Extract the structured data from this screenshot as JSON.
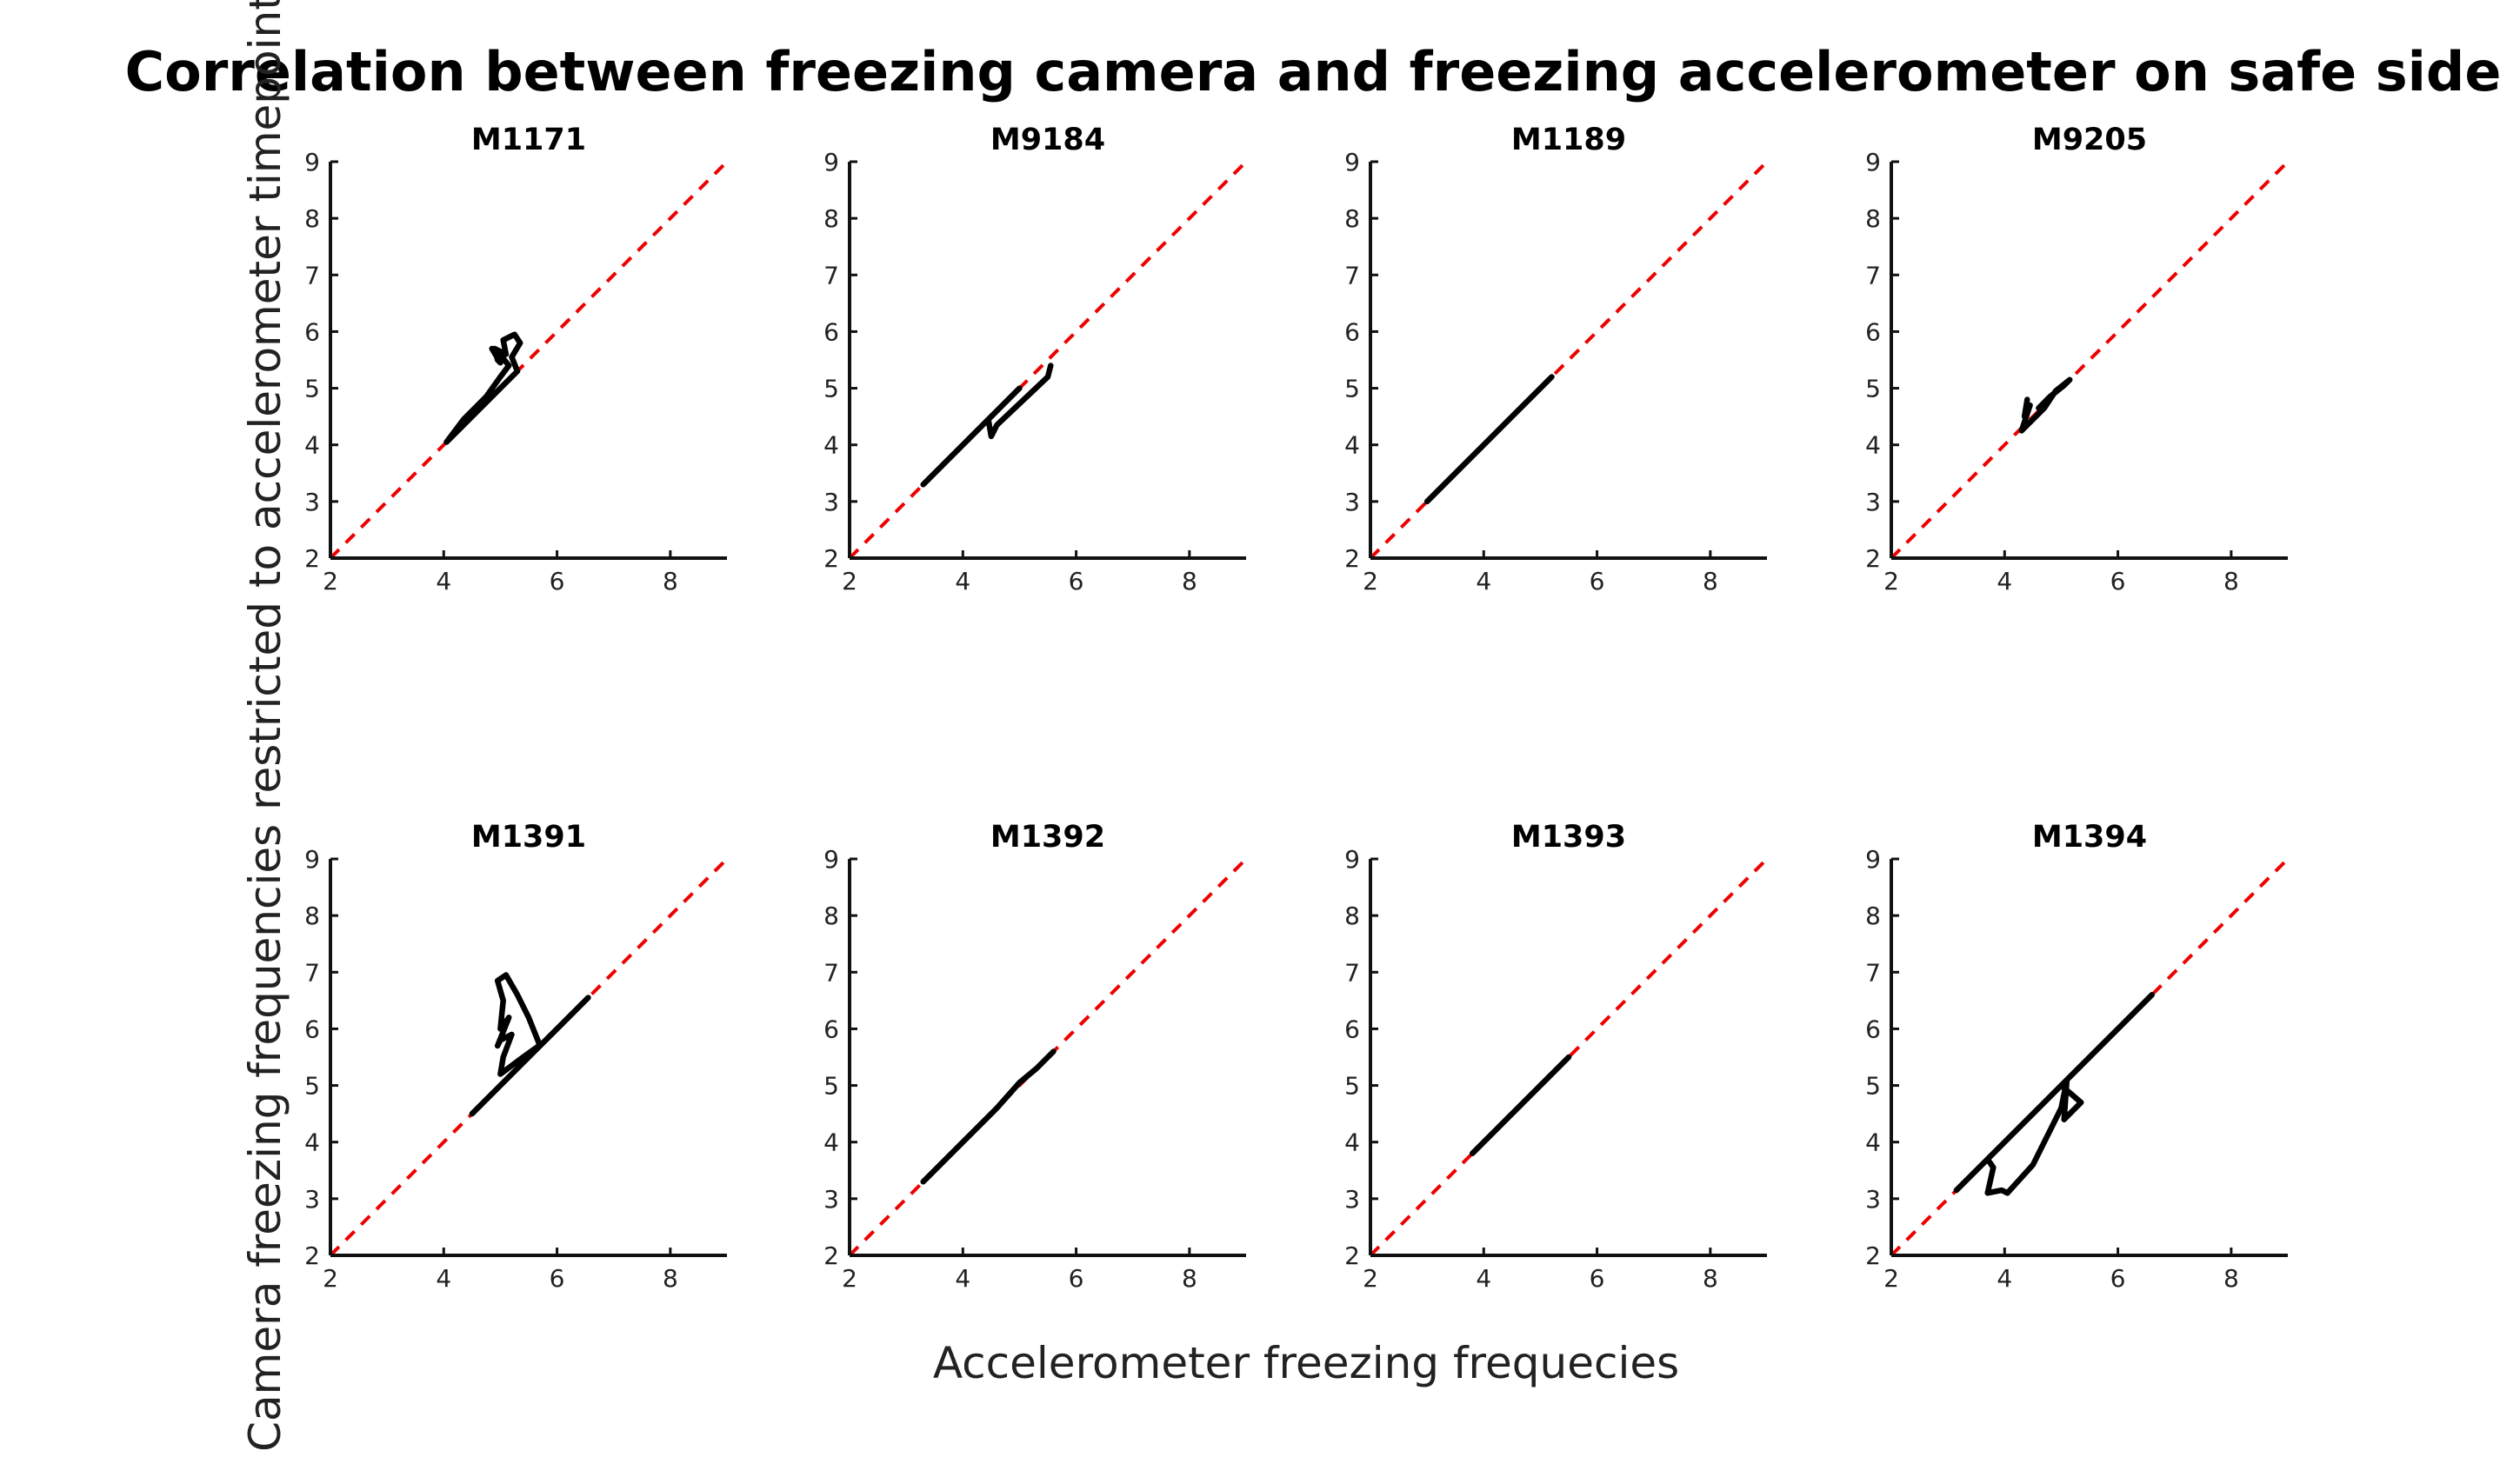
{
  "figure": {
    "title": "Correlation between freezing camera and freezing accelerometer on safe side",
    "xlabel": "Accelerometer freezing frequecies",
    "ylabel": "Camera freezing frequencies restricted to accelerometer timepoints"
  },
  "colors": {
    "reference_line": "#ee0000",
    "data_line": "#000000",
    "axes": "#111111"
  },
  "chart_data": [
    {
      "type": "line",
      "title": "M1171",
      "xlim": [
        2,
        9
      ],
      "ylim": [
        2,
        9
      ],
      "xticks": [
        2,
        4,
        6,
        8
      ],
      "yticks": [
        2,
        3,
        4,
        5,
        6,
        7,
        8,
        9
      ],
      "grid": false,
      "reference_line": {
        "style": "dashed",
        "color": "#ee0000",
        "x": [
          2,
          9
        ],
        "y": [
          2,
          9
        ]
      },
      "series": [
        {
          "x": [
            4.05,
            4.3,
            4.6,
            5.0,
            5.3,
            5.2,
            5.35,
            5.25,
            5.05,
            5.1,
            4.9,
            4.95,
            5.0,
            4.85,
            4.95,
            5.15,
            5.0,
            4.75,
            4.35,
            4.05
          ],
          "y": [
            4.05,
            4.3,
            4.6,
            5.0,
            5.3,
            5.55,
            5.8,
            5.95,
            5.85,
            5.6,
            5.7,
            5.5,
            5.45,
            5.7,
            5.65,
            5.4,
            5.2,
            4.85,
            4.45,
            4.05
          ]
        }
      ]
    },
    {
      "type": "line",
      "title": "M9184",
      "xlim": [
        2,
        9
      ],
      "ylim": [
        2,
        9
      ],
      "xticks": [
        2,
        4,
        6,
        8
      ],
      "yticks": [
        2,
        3,
        4,
        5,
        6,
        7,
        8,
        9
      ],
      "grid": false,
      "reference_line": {
        "style": "dashed",
        "color": "#ee0000",
        "x": [
          2,
          9
        ],
        "y": [
          2,
          9
        ]
      },
      "series": [
        {
          "x": [
            3.3,
            4.0,
            4.5,
            5.0,
            4.45,
            4.5,
            4.6,
            5.5,
            5.55
          ],
          "y": [
            3.3,
            4.0,
            4.5,
            5.0,
            4.45,
            4.15,
            4.35,
            5.2,
            5.4
          ]
        }
      ]
    },
    {
      "type": "line",
      "title": "M1189",
      "xlim": [
        2,
        9
      ],
      "ylim": [
        2,
        9
      ],
      "xticks": [
        2,
        4,
        6,
        8
      ],
      "yticks": [
        2,
        3,
        4,
        5,
        6,
        7,
        8,
        9
      ],
      "grid": false,
      "reference_line": {
        "style": "dashed",
        "color": "#ee0000",
        "x": [
          2,
          9
        ],
        "y": [
          2,
          9
        ]
      },
      "series": [
        {
          "x": [
            3.0,
            3.8,
            4.6,
            5.2
          ],
          "y": [
            3.0,
            3.8,
            4.6,
            5.2
          ]
        }
      ]
    },
    {
      "type": "line",
      "title": "M9205",
      "xlim": [
        2,
        9
      ],
      "ylim": [
        2,
        9
      ],
      "xticks": [
        2,
        4,
        6,
        8
      ],
      "yticks": [
        2,
        3,
        4,
        5,
        6,
        7,
        8,
        9
      ],
      "grid": false,
      "reference_line": {
        "style": "dashed",
        "color": "#ee0000",
        "x": [
          2,
          9
        ],
        "y": [
          2,
          9
        ]
      },
      "series": [
        {
          "x": [
            4.4,
            4.35,
            4.45,
            4.3,
            4.7,
            4.9,
            5.15,
            5.05,
            4.8,
            4.6
          ],
          "y": [
            4.8,
            4.5,
            4.7,
            4.25,
            4.65,
            4.95,
            5.15,
            5.05,
            4.85,
            4.65
          ]
        }
      ]
    },
    {
      "type": "line",
      "title": "M1391",
      "xlim": [
        2,
        9
      ],
      "ylim": [
        2,
        9
      ],
      "xticks": [
        2,
        4,
        6,
        8
      ],
      "yticks": [
        2,
        3,
        4,
        5,
        6,
        7,
        8,
        9
      ],
      "grid": false,
      "reference_line": {
        "style": "dashed",
        "color": "#ee0000",
        "x": [
          2,
          9
        ],
        "y": [
          2,
          9
        ]
      },
      "series": [
        {
          "x": [
            4.5,
            4.9,
            5.3,
            5.7,
            5.5,
            5.3,
            5.1,
            4.95,
            5.05,
            5.0,
            5.15,
            4.95,
            5.0,
            5.2,
            5.05,
            5.0,
            5.4,
            5.75,
            6.1,
            6.55,
            6.0,
            5.5,
            5.0,
            4.5
          ],
          "y": [
            4.5,
            4.9,
            5.3,
            5.7,
            6.2,
            6.6,
            6.95,
            6.85,
            6.5,
            6.0,
            6.2,
            5.7,
            5.8,
            5.9,
            5.5,
            5.2,
            5.5,
            5.75,
            6.1,
            6.55,
            6.0,
            5.5,
            5.0,
            4.5
          ]
        }
      ]
    },
    {
      "type": "line",
      "title": "M1392",
      "xlim": [
        2,
        9
      ],
      "ylim": [
        2,
        9
      ],
      "xticks": [
        2,
        4,
        6,
        8
      ],
      "yticks": [
        2,
        3,
        4,
        5,
        6,
        7,
        8,
        9
      ],
      "grid": false,
      "reference_line": {
        "style": "dashed",
        "color": "#ee0000",
        "x": [
          2,
          9
        ],
        "y": [
          2,
          9
        ]
      },
      "series": [
        {
          "x": [
            3.3,
            4.0,
            4.6,
            5.0,
            5.3,
            5.6
          ],
          "y": [
            3.3,
            4.0,
            4.6,
            5.05,
            5.3,
            5.6
          ]
        }
      ]
    },
    {
      "type": "line",
      "title": "M1393",
      "xlim": [
        2,
        9
      ],
      "ylim": [
        2,
        9
      ],
      "xticks": [
        2,
        4,
        6,
        8
      ],
      "yticks": [
        2,
        3,
        4,
        5,
        6,
        7,
        8,
        9
      ],
      "grid": false,
      "reference_line": {
        "style": "dashed",
        "color": "#ee0000",
        "x": [
          2,
          9
        ],
        "y": [
          2,
          9
        ]
      },
      "series": [
        {
          "x": [
            3.8,
            4.5,
            5.0,
            5.5
          ],
          "y": [
            3.8,
            4.5,
            5.0,
            5.5
          ]
        }
      ]
    },
    {
      "type": "line",
      "title": "M1394",
      "xlim": [
        2,
        9
      ],
      "ylim": [
        2,
        9
      ],
      "xticks": [
        2,
        4,
        6,
        8
      ],
      "yticks": [
        2,
        3,
        4,
        5,
        6,
        7,
        8,
        9
      ],
      "grid": false,
      "reference_line": {
        "style": "dashed",
        "color": "#ee0000",
        "x": [
          2,
          9
        ],
        "y": [
          2,
          9
        ]
      },
      "series": [
        {
          "x": [
            3.15,
            3.7,
            3.8,
            3.7,
            3.95,
            4.05,
            4.5,
            5.0,
            5.1,
            5.05,
            5.35,
            5.0,
            5.5,
            6.0,
            6.6,
            6.0,
            5.0,
            4.0,
            3.15
          ],
          "y": [
            3.15,
            3.7,
            3.55,
            3.1,
            3.15,
            3.1,
            3.6,
            4.6,
            5.1,
            4.4,
            4.7,
            5.0,
            5.5,
            6.0,
            6.6,
            6.0,
            5.0,
            4.0,
            3.15
          ]
        }
      ]
    }
  ]
}
